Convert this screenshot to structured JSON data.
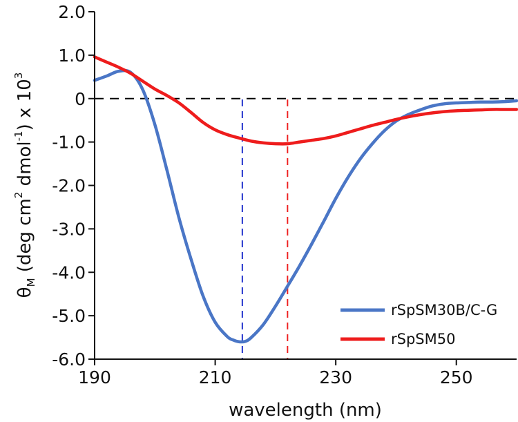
{
  "chart_data": {
    "type": "line",
    "title": "",
    "xlabel": "wavelength (nm)",
    "ylabel": {
      "symbol": "θ",
      "subscript": "M",
      "part1": " (deg cm",
      "sup1": "2",
      "part2": " dmol",
      "sup2": "-1",
      "part3": ") x 10",
      "sup3": "3"
    },
    "xlim": [
      190,
      260
    ],
    "ylim": [
      -6.0,
      2.0
    ],
    "xticks": [
      190,
      210,
      230,
      250
    ],
    "yticks": [
      2.0,
      1.0,
      0,
      -1.0,
      -2.0,
      -3.0,
      -4.0,
      -5.0,
      -6.0
    ],
    "xtick_labels": [
      "190",
      "210",
      "230",
      "250"
    ],
    "ytick_labels": [
      "2.0",
      "1.0",
      "0",
      "-1.0",
      "-2.0",
      "-3.0",
      "-4.0",
      "-5.0",
      "-6.0"
    ],
    "grid": false,
    "legend_position": "lower-right",
    "reference_lines": [
      {
        "orientation": "horizontal",
        "value": 0,
        "color": "#000000",
        "style": "dashed"
      },
      {
        "orientation": "vertical",
        "value": 214.5,
        "color": "#2233cc",
        "style": "dashed"
      },
      {
        "orientation": "vertical",
        "value": 222,
        "color": "#ee2222",
        "style": "dashed"
      }
    ],
    "series": [
      {
        "name": "rSpSM30B/C-G",
        "color": "#4a76c6",
        "x": [
          190,
          192,
          194,
          196,
          198,
          200,
          202,
          204,
          206,
          208,
          210,
          212,
          213,
          214,
          215,
          216,
          218,
          220,
          222,
          224,
          226,
          228,
          230,
          232,
          234,
          236,
          238,
          240,
          242,
          244,
          246,
          248,
          250,
          252,
          254,
          256,
          258,
          260
        ],
        "y": [
          0.42,
          0.52,
          0.63,
          0.6,
          0.2,
          -0.6,
          -1.65,
          -2.75,
          -3.7,
          -4.55,
          -5.15,
          -5.48,
          -5.56,
          -5.6,
          -5.59,
          -5.5,
          -5.2,
          -4.78,
          -4.32,
          -3.85,
          -3.35,
          -2.83,
          -2.3,
          -1.82,
          -1.4,
          -1.05,
          -0.75,
          -0.52,
          -0.37,
          -0.26,
          -0.17,
          -0.12,
          -0.1,
          -0.09,
          -0.08,
          -0.08,
          -0.07,
          -0.05
        ]
      },
      {
        "name": "rSpSM50",
        "color": "#ee1c1c",
        "x": [
          190,
          192,
          194,
          196,
          198,
          200,
          202,
          204,
          206,
          208,
          210,
          212,
          214,
          216,
          218,
          220,
          222,
          224,
          226,
          228,
          230,
          232,
          234,
          236,
          238,
          240,
          242,
          244,
          246,
          248,
          250,
          252,
          254,
          256,
          258,
          260
        ],
        "y": [
          0.96,
          0.84,
          0.72,
          0.58,
          0.4,
          0.22,
          0.07,
          -0.1,
          -0.32,
          -0.55,
          -0.72,
          -0.83,
          -0.91,
          -0.98,
          -1.02,
          -1.04,
          -1.04,
          -1.0,
          -0.96,
          -0.92,
          -0.86,
          -0.78,
          -0.7,
          -0.62,
          -0.55,
          -0.48,
          -0.42,
          -0.37,
          -0.33,
          -0.3,
          -0.28,
          -0.27,
          -0.26,
          -0.25,
          -0.25,
          -0.25
        ]
      }
    ]
  }
}
